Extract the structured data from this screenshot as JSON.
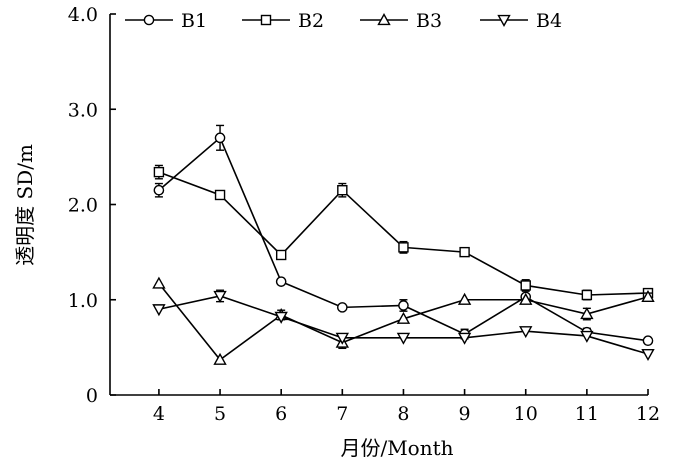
{
  "chart_data": {
    "type": "line",
    "xlabel": "月份/Month",
    "ylabel": "透明度 SD/m",
    "x": [
      4,
      5,
      6,
      7,
      8,
      9,
      10,
      11,
      12
    ],
    "x_ticks": [
      "4",
      "5",
      "6",
      "7",
      "8",
      "9",
      "10",
      "11",
      "12"
    ],
    "y_ticks": [
      "0",
      "1.0",
      "2.0",
      "3.0",
      "4.0"
    ],
    "xlim": [
      3.2,
      12
    ],
    "ylim": [
      0,
      4.0
    ],
    "grid": false,
    "legend_position": "top",
    "series": [
      {
        "name": "B1",
        "marker": "circle",
        "values": [
          2.15,
          2.7,
          1.19,
          0.92,
          0.94,
          0.64,
          1.03,
          0.66,
          0.57
        ],
        "errors": [
          0.07,
          0.13,
          0.0,
          0.0,
          0.06,
          0.05,
          0.0,
          0.04,
          0.0
        ]
      },
      {
        "name": "B2",
        "marker": "square",
        "values": [
          2.34,
          2.1,
          1.47,
          2.15,
          1.55,
          1.5,
          1.15,
          1.05,
          1.07
        ],
        "errors": [
          0.07,
          0.0,
          0.0,
          0.07,
          0.06,
          0.0,
          0.06,
          0.05,
          0.0
        ]
      },
      {
        "name": "B3",
        "marker": "triangle-up",
        "values": [
          1.17,
          0.37,
          0.84,
          0.55,
          0.8,
          1.0,
          1.0,
          0.85,
          1.03
        ],
        "errors": [
          0.0,
          0.0,
          0.05,
          0.06,
          0.0,
          0.0,
          0.0,
          0.06,
          0.04
        ]
      },
      {
        "name": "B4",
        "marker": "triangle-down",
        "values": [
          0.9,
          1.04,
          0.82,
          0.6,
          0.6,
          0.6,
          0.67,
          0.62,
          0.43
        ],
        "errors": [
          0.0,
          0.06,
          0.0,
          0.0,
          0.0,
          0.0,
          0.0,
          0.0,
          0.0
        ]
      }
    ]
  }
}
